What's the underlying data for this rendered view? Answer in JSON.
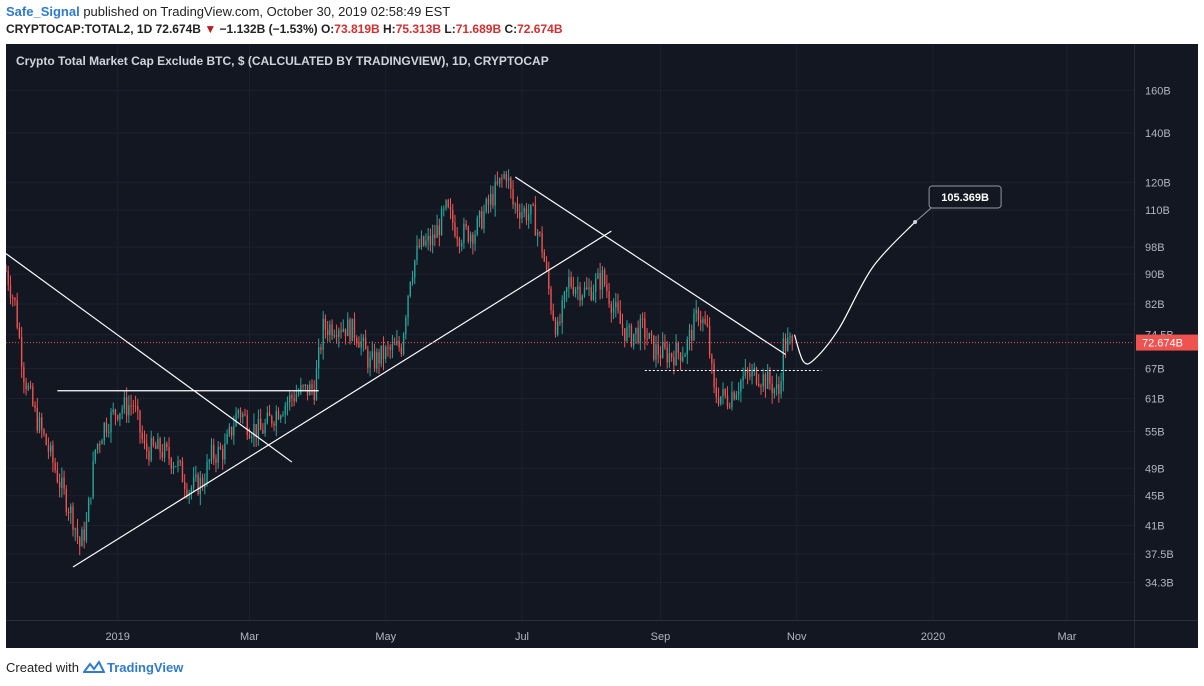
{
  "header": {
    "author": "Safe_Signal",
    "published_text": "published on TradingView.com, October 30, 2019 02:58:49 EST",
    "symbol": "CRYPTOCAP:TOTAL2, 1D",
    "last": "72.674B",
    "change": "−1.132B (−1.53%)",
    "o_label": "O:",
    "o_value": "73.819B",
    "h_label": "H:",
    "h_value": "75.313B",
    "l_label": "L:",
    "l_value": "71.689B",
    "c_label": "C:",
    "c_value": "72.674B"
  },
  "footer": {
    "created_with": "Created with",
    "brand": "TradingView"
  },
  "colors": {
    "background": "#131722",
    "up": "#26a69a",
    "down": "#ef5350",
    "lines": "#ffffff",
    "axis_text": "#b2b5be",
    "price_label_bg": "#ef5350",
    "accent": "#2e7bcf"
  },
  "chart_data": {
    "type": "candlestick",
    "title": "Crypto Total Market Cap Exclude BTC, $ (CALCULATED BY TRADINGVIEW), 1D, CRYPTOCAP",
    "y_scale": "log",
    "ylim": [
      30.5,
      185
    ],
    "xlim": [
      "2018-11-12",
      "2020-03-31"
    ],
    "y_ticks": [
      "160B",
      "140B",
      "120B",
      "110B",
      "98B",
      "90B",
      "82B",
      "74.5B",
      "67B",
      "61B",
      "55B",
      "49B",
      "45B",
      "41B",
      "37.5B",
      "34.3B"
    ],
    "y_tick_values": [
      160,
      140,
      120,
      110,
      98,
      90,
      82,
      74.5,
      67,
      61,
      55,
      49,
      45,
      41,
      37.5,
      34.3
    ],
    "x_ticks": [
      {
        "label": "2019",
        "date": "2019-01-01"
      },
      {
        "label": "Mar",
        "date": "2019-03-01"
      },
      {
        "label": "May",
        "date": "2019-05-01"
      },
      {
        "label": "Jul",
        "date": "2019-07-01"
      },
      {
        "label": "Sep",
        "date": "2019-09-01"
      },
      {
        "label": "Nov",
        "date": "2019-11-01"
      },
      {
        "label": "2020",
        "date": "2020-01-01"
      },
      {
        "label": "Mar",
        "date": "2020-03-01"
      }
    ],
    "current_price": {
      "label": "72.674B",
      "value": 72.674
    },
    "price_path": [
      [
        "2018-11-12",
        91
      ],
      [
        "2018-11-16",
        82
      ],
      [
        "2018-11-20",
        66
      ],
      [
        "2018-11-25",
        58
      ],
      [
        "2018-12-01",
        52
      ],
      [
        "2018-12-07",
        46
      ],
      [
        "2018-12-12",
        42
      ],
      [
        "2018-12-15",
        38.5
      ],
      [
        "2018-12-18",
        41
      ],
      [
        "2018-12-22",
        52
      ],
      [
        "2018-12-26",
        56
      ],
      [
        "2019-01-01",
        59
      ],
      [
        "2019-01-08",
        60
      ],
      [
        "2019-01-13",
        52
      ],
      [
        "2019-01-20",
        52
      ],
      [
        "2019-01-27",
        50
      ],
      [
        "2019-02-02",
        46
      ],
      [
        "2019-02-08",
        47
      ],
      [
        "2019-02-12",
        51
      ],
      [
        "2019-02-18",
        52
      ],
      [
        "2019-02-24",
        59
      ],
      [
        "2019-03-01",
        56
      ],
      [
        "2019-03-06",
        55
      ],
      [
        "2019-03-14",
        59
      ],
      [
        "2019-03-22",
        62
      ],
      [
        "2019-03-30",
        63
      ],
      [
        "2019-04-03",
        76
      ],
      [
        "2019-04-10",
        77
      ],
      [
        "2019-04-18",
        75
      ],
      [
        "2019-04-24",
        68
      ],
      [
        "2019-04-30",
        70
      ],
      [
        "2019-05-08",
        72
      ],
      [
        "2019-05-12",
        90
      ],
      [
        "2019-05-16",
        98
      ],
      [
        "2019-05-22",
        100
      ],
      [
        "2019-05-28",
        110
      ],
      [
        "2019-06-03",
        102
      ],
      [
        "2019-06-10",
        103
      ],
      [
        "2019-06-18",
        115
      ],
      [
        "2019-06-24",
        124
      ],
      [
        "2019-06-27",
        112
      ],
      [
        "2019-07-01",
        110
      ],
      [
        "2019-07-06",
        108
      ],
      [
        "2019-07-10",
        98
      ],
      [
        "2019-07-14",
        82
      ],
      [
        "2019-07-17",
        75
      ],
      [
        "2019-07-22",
        88
      ],
      [
        "2019-07-30",
        85
      ],
      [
        "2019-08-06",
        89
      ],
      [
        "2019-08-14",
        77
      ],
      [
        "2019-08-18",
        74
      ],
      [
        "2019-08-24",
        76
      ],
      [
        "2019-08-29",
        71
      ],
      [
        "2019-09-05",
        70
      ],
      [
        "2019-09-12",
        71
      ],
      [
        "2019-09-18",
        80
      ],
      [
        "2019-09-22",
        75
      ],
      [
        "2019-09-25",
        62
      ],
      [
        "2019-10-01",
        61
      ],
      [
        "2019-10-08",
        65
      ],
      [
        "2019-10-14",
        66
      ],
      [
        "2019-10-20",
        64
      ],
      [
        "2019-10-24",
        62
      ],
      [
        "2019-10-26",
        72
      ],
      [
        "2019-10-30",
        72.674
      ]
    ],
    "annotations": {
      "target_label": "105.369B",
      "target_value": 105.369,
      "projection": [
        [
          "2019-10-31",
          74.5
        ],
        [
          "2019-11-04",
          68.5
        ],
        [
          "2019-11-09",
          69
        ],
        [
          "2019-11-20",
          76
        ],
        [
          "2019-12-05",
          92
        ],
        [
          "2019-12-24",
          106
        ]
      ],
      "lines": [
        {
          "from": [
            "2018-11-12",
            96
          ],
          "to": [
            "2019-03-20",
            50
          ]
        },
        {
          "from": [
            "2018-12-12",
            36
          ],
          "to": [
            "2019-08-10",
            103
          ]
        },
        {
          "from": [
            "2018-12-05",
            62.5
          ],
          "to": [
            "2019-04-01",
            62.5
          ]
        },
        {
          "from": [
            "2019-06-28",
            122
          ],
          "to": [
            "2019-10-27",
            70
          ]
        }
      ],
      "dotted_support": {
        "from": [
          "2019-08-25",
          66.6
        ],
        "to": [
          "2019-11-12",
          66.6
        ]
      }
    }
  }
}
